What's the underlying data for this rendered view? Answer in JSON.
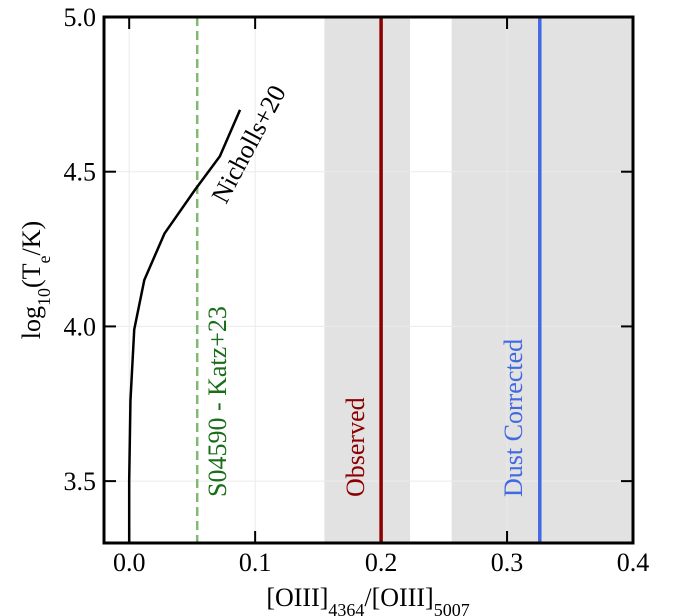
{
  "chart_data": {
    "type": "line",
    "x_label": [
      "[OIII]",
      "4364",
      "/[OIII]",
      "5007"
    ],
    "y_label": [
      "log",
      "10",
      "(T",
      "e",
      "/K)"
    ],
    "xlim": [
      -0.02,
      0.4
    ],
    "ylim": [
      3.3,
      5.0
    ],
    "xticks": [
      {
        "value": 0,
        "label": "0.0"
      },
      0.1,
      0.2,
      0.3,
      0.4
    ],
    "yticks": [
      3.5,
      {
        "value": 4,
        "label": "4.0"
      },
      4.5,
      {
        "value": 5,
        "label": "5.0"
      }
    ],
    "grid": true,
    "series": [
      {
        "name": "Nicholls+20",
        "color": "#000000",
        "x": [
          0,
          0,
          0.001,
          0.004,
          0.012,
          0.028,
          0.052,
          0.072,
          0.088
        ],
        "values": [
          3.3,
          3.5,
          3.76,
          3.99,
          4.15,
          4.3,
          4.44,
          4.55,
          4.7
        ]
      }
    ],
    "spans": [
      {
        "x": [
          0.155,
          0.223
        ],
        "color": "#e2e2e2"
      },
      {
        "x": [
          0.256,
          0.4
        ],
        "color": "#e2e2e2"
      }
    ],
    "vlines": [
      {
        "name": "S04590 - Katz+23",
        "x": 0.054,
        "color": "#7dbb6f",
        "text_color": "#1a6e1a",
        "dashed": true
      },
      {
        "name": "Observed",
        "x": 0.2,
        "color": "#8b0000",
        "text_color": "#8b0000",
        "dashed": false
      },
      {
        "name": "Dust Corrected",
        "x": 0.326,
        "color": "#4169e1",
        "text_color": "#4169e1",
        "dashed": false
      }
    ]
  }
}
